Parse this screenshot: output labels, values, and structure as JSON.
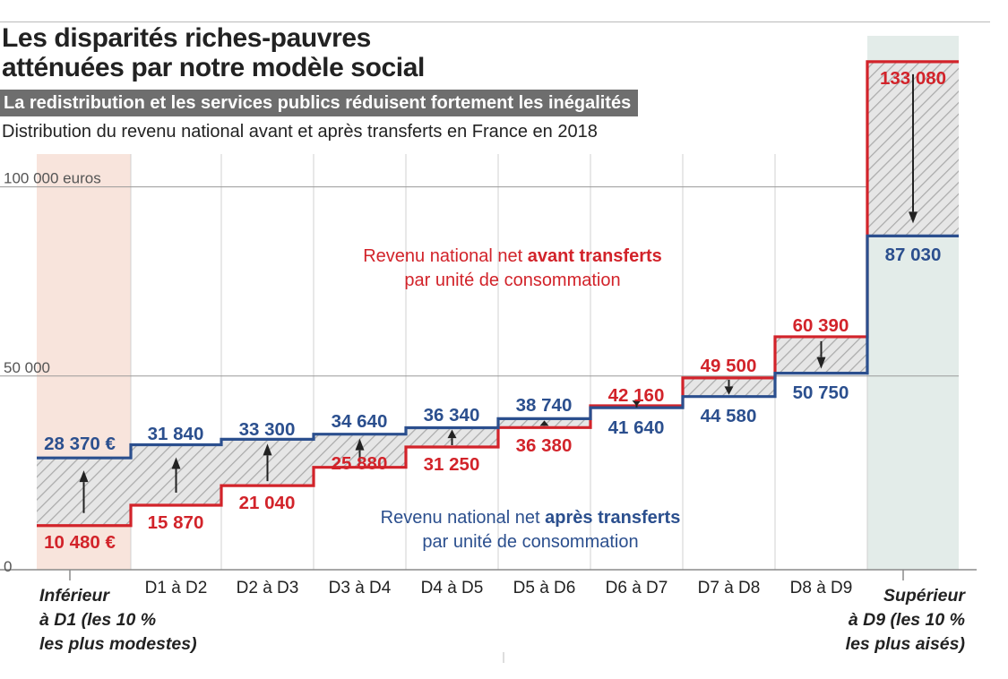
{
  "header": {
    "title_line1": "Les disparités riches-pauvres",
    "title_line2": "atténuées par notre modèle social",
    "subtitle": "La redistribution et les services publics réduisent fortement les inégalités",
    "caption": "Distribution du revenu national avant et après transferts en France en 2018"
  },
  "chart_data": {
    "type": "step",
    "title": "Distribution du revenu national avant et après transferts en France en 2018",
    "unit": "euros",
    "ylim": [
      0,
      140000
    ],
    "y_ticks": [
      {
        "value": 100000,
        "label": "100 000 euros"
      },
      {
        "value": 50000,
        "label": "50 000"
      },
      {
        "value": 0,
        "label": "0"
      }
    ],
    "categories": [
      [
        "Inférieur",
        "à D1 (les 10 %",
        "les plus modestes)"
      ],
      [
        "D1 à D2"
      ],
      [
        "D2 à D3"
      ],
      [
        "D3 à D4"
      ],
      [
        "D4 à D5"
      ],
      [
        "D5 à D6"
      ],
      [
        "D6 à D7"
      ],
      [
        "D7 à D8"
      ],
      [
        "D8 à D9"
      ],
      [
        "Supérieur",
        "à D9 (les 10 %",
        "les plus aisés)"
      ]
    ],
    "series": [
      {
        "name": "avant transferts",
        "color": "#d2232a",
        "values": [
          10480,
          15870,
          21040,
          25880,
          31250,
          36380,
          42160,
          49500,
          60390,
          133080
        ],
        "labels": [
          "10 480 €",
          "15 870",
          "21 040",
          "25 880",
          "31 250",
          "36 380",
          "42 160",
          "49 500",
          "60 390",
          "133 080"
        ]
      },
      {
        "name": "après transferts",
        "color": "#2b4f8e",
        "values": [
          28370,
          31840,
          33300,
          34640,
          36340,
          38740,
          41640,
          44580,
          50750,
          87030
        ],
        "labels": [
          "28 370 €",
          "31 840",
          "33 300",
          "34 640",
          "36 340",
          "38 740",
          "41 640",
          "44 580",
          "50 750",
          "87 030"
        ]
      }
    ],
    "annotations": {
      "avant": {
        "prefix": "Revenu national net ",
        "bold": "avant transferts",
        "line2": "par unité de consommation"
      },
      "apres": {
        "prefix": "Revenu national net ",
        "bold": "après transferts",
        "line2": "par unité de consommation"
      }
    },
    "highlight": {
      "first_fill": "#f8e4dc",
      "last_fill": "#e3ece9"
    }
  }
}
